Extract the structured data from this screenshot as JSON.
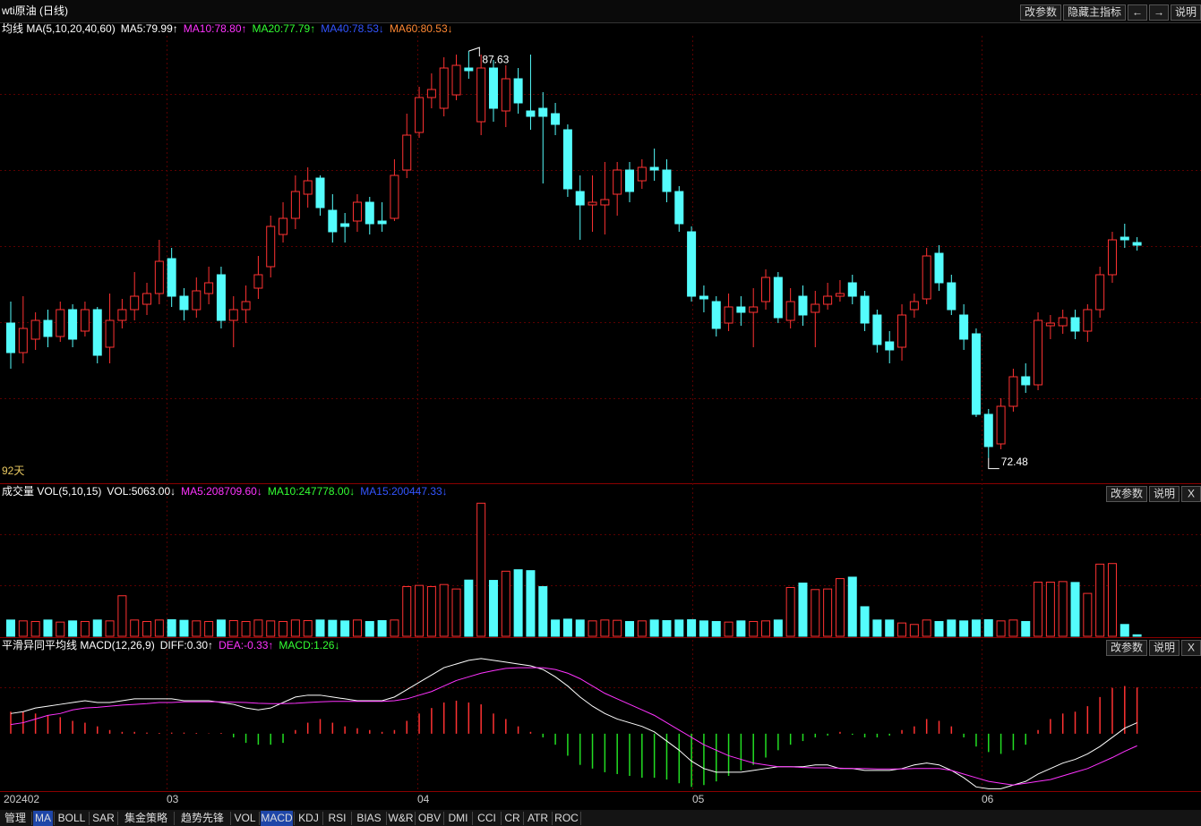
{
  "header": {
    "title": "wti原油 (日线)",
    "buttons": [
      "改参数",
      "隐藏主指标",
      "←",
      "→",
      "说明"
    ]
  },
  "chart_data": [
    {
      "type": "candlestick",
      "legend": [
        {
          "text": "均线 MA(5,10,20,40,60)",
          "color": "#ffffff"
        },
        {
          "text": "MA5:79.99↑",
          "color": "#ffffff"
        },
        {
          "text": "MA10:78.80↑",
          "color": "#ff33ff"
        },
        {
          "text": "MA20:77.79↑",
          "color": "#33ff33"
        },
        {
          "text": "MA40:78.53↓",
          "color": "#3355ff"
        },
        {
          "text": "MA60:80.53↓",
          "color": "#ff8833"
        }
      ],
      "period_label": "92天",
      "up_color": "#ff3232",
      "down_color": "#54fcfc",
      "ylim": [
        71.6,
        88.2
      ],
      "candles": [
        {
          "open": 77.5,
          "high": 78.3,
          "low": 75.8,
          "close": 76.4
        },
        {
          "open": 76.4,
          "high": 78.5,
          "low": 76.0,
          "close": 77.3
        },
        {
          "open": 76.9,
          "high": 77.9,
          "low": 76.5,
          "close": 77.6
        },
        {
          "open": 77.6,
          "high": 78.0,
          "low": 76.6,
          "close": 77.0
        },
        {
          "open": 77.0,
          "high": 78.3,
          "low": 76.8,
          "close": 78.0
        },
        {
          "open": 78.0,
          "high": 78.2,
          "low": 76.6,
          "close": 76.9
        },
        {
          "open": 77.2,
          "high": 78.3,
          "low": 77.0,
          "close": 78.0
        },
        {
          "open": 78.0,
          "high": 78.1,
          "low": 76.0,
          "close": 76.3
        },
        {
          "open": 76.6,
          "high": 78.6,
          "low": 76.0,
          "close": 77.6
        },
        {
          "open": 77.6,
          "high": 78.4,
          "low": 77.3,
          "close": 78.0
        },
        {
          "open": 78.0,
          "high": 79.4,
          "low": 77.6,
          "close": 78.5
        },
        {
          "open": 78.2,
          "high": 79.0,
          "low": 77.8,
          "close": 78.6
        },
        {
          "open": 78.6,
          "high": 80.6,
          "low": 78.2,
          "close": 79.8
        },
        {
          "open": 79.9,
          "high": 80.3,
          "low": 78.1,
          "close": 78.5
        },
        {
          "open": 78.5,
          "high": 78.8,
          "low": 77.6,
          "close": 78.0
        },
        {
          "open": 78.0,
          "high": 79.2,
          "low": 77.7,
          "close": 78.7
        },
        {
          "open": 78.6,
          "high": 79.6,
          "low": 78.2,
          "close": 79.0
        },
        {
          "open": 79.3,
          "high": 79.6,
          "low": 77.3,
          "close": 77.6
        },
        {
          "open": 77.6,
          "high": 78.5,
          "low": 76.6,
          "close": 78.0
        },
        {
          "open": 78.0,
          "high": 78.9,
          "low": 77.5,
          "close": 78.3
        },
        {
          "open": 78.8,
          "high": 80.0,
          "low": 78.4,
          "close": 79.3
        },
        {
          "open": 79.6,
          "high": 81.5,
          "low": 79.2,
          "close": 81.1
        },
        {
          "open": 80.8,
          "high": 82.0,
          "low": 80.5,
          "close": 81.4
        },
        {
          "open": 81.4,
          "high": 83.0,
          "low": 81.0,
          "close": 82.4
        },
        {
          "open": 82.3,
          "high": 83.3,
          "low": 81.8,
          "close": 82.8
        },
        {
          "open": 82.9,
          "high": 83.0,
          "low": 81.5,
          "close": 81.8
        },
        {
          "open": 81.7,
          "high": 82.3,
          "low": 80.5,
          "close": 80.9
        },
        {
          "open": 81.2,
          "high": 81.6,
          "low": 80.5,
          "close": 81.1
        },
        {
          "open": 81.3,
          "high": 82.3,
          "low": 80.9,
          "close": 82.0
        },
        {
          "open": 82.0,
          "high": 82.2,
          "low": 80.8,
          "close": 81.2
        },
        {
          "open": 81.3,
          "high": 82.0,
          "low": 80.9,
          "close": 81.2
        },
        {
          "open": 81.4,
          "high": 83.6,
          "low": 81.3,
          "close": 83.0
        },
        {
          "open": 83.2,
          "high": 85.3,
          "low": 82.9,
          "close": 84.5
        },
        {
          "open": 84.6,
          "high": 86.3,
          "low": 84.4,
          "close": 85.9
        },
        {
          "open": 85.9,
          "high": 86.8,
          "low": 85.5,
          "close": 86.2
        },
        {
          "open": 85.5,
          "high": 87.4,
          "low": 85.2,
          "close": 87.0
        },
        {
          "open": 86.0,
          "high": 87.5,
          "low": 85.8,
          "close": 87.1
        },
        {
          "open": 87.0,
          "high": 87.63,
          "low": 86.6,
          "close": 86.9
        },
        {
          "open": 85.0,
          "high": 87.5,
          "low": 84.5,
          "close": 87.0
        },
        {
          "open": 87.0,
          "high": 87.3,
          "low": 85.0,
          "close": 85.5
        },
        {
          "open": 85.4,
          "high": 87.1,
          "low": 84.8,
          "close": 86.6
        },
        {
          "open": 86.6,
          "high": 87.0,
          "low": 85.3,
          "close": 85.7
        },
        {
          "open": 85.4,
          "high": 87.5,
          "low": 84.7,
          "close": 85.2
        },
        {
          "open": 85.5,
          "high": 86.1,
          "low": 82.7,
          "close": 85.2
        },
        {
          "open": 85.3,
          "high": 85.7,
          "low": 84.5,
          "close": 84.9
        },
        {
          "open": 84.7,
          "high": 84.9,
          "low": 82.2,
          "close": 82.5
        },
        {
          "open": 82.4,
          "high": 83.0,
          "low": 80.6,
          "close": 81.9
        },
        {
          "open": 81.9,
          "high": 83.0,
          "low": 80.9,
          "close": 82.0
        },
        {
          "open": 81.9,
          "high": 83.5,
          "low": 80.8,
          "close": 82.1
        },
        {
          "open": 82.3,
          "high": 83.5,
          "low": 81.5,
          "close": 83.2
        },
        {
          "open": 83.2,
          "high": 83.5,
          "low": 82.0,
          "close": 82.4
        },
        {
          "open": 82.8,
          "high": 83.6,
          "low": 82.5,
          "close": 83.3
        },
        {
          "open": 83.3,
          "high": 84.0,
          "low": 82.8,
          "close": 83.2
        },
        {
          "open": 83.2,
          "high": 83.6,
          "low": 82.0,
          "close": 82.4
        },
        {
          "open": 82.4,
          "high": 82.6,
          "low": 80.9,
          "close": 81.2
        },
        {
          "open": 80.9,
          "high": 81.1,
          "low": 78.3,
          "close": 78.5
        },
        {
          "open": 78.5,
          "high": 78.9,
          "low": 77.9,
          "close": 78.4
        },
        {
          "open": 78.3,
          "high": 78.5,
          "low": 77.0,
          "close": 77.3
        },
        {
          "open": 77.5,
          "high": 78.6,
          "low": 77.2,
          "close": 78.1
        },
        {
          "open": 78.1,
          "high": 78.5,
          "low": 77.4,
          "close": 77.9
        },
        {
          "open": 77.9,
          "high": 78.8,
          "low": 76.6,
          "close": 78.1
        },
        {
          "open": 78.3,
          "high": 79.5,
          "low": 78.0,
          "close": 79.2
        },
        {
          "open": 79.2,
          "high": 79.4,
          "low": 77.5,
          "close": 77.7
        },
        {
          "open": 77.6,
          "high": 78.8,
          "low": 77.3,
          "close": 78.3
        },
        {
          "open": 78.5,
          "high": 78.9,
          "low": 77.4,
          "close": 77.8
        },
        {
          "open": 77.9,
          "high": 78.7,
          "low": 76.6,
          "close": 78.2
        },
        {
          "open": 78.2,
          "high": 79.0,
          "low": 78.0,
          "close": 78.5
        },
        {
          "open": 78.5,
          "high": 79.1,
          "low": 78.3,
          "close": 78.6
        },
        {
          "open": 79.0,
          "high": 79.3,
          "low": 78.2,
          "close": 78.5
        },
        {
          "open": 78.5,
          "high": 78.7,
          "low": 77.2,
          "close": 77.5
        },
        {
          "open": 77.8,
          "high": 78.0,
          "low": 76.4,
          "close": 76.7
        },
        {
          "open": 76.8,
          "high": 77.2,
          "low": 76.0,
          "close": 76.5
        },
        {
          "open": 76.6,
          "high": 78.2,
          "low": 76.1,
          "close": 77.8
        },
        {
          "open": 78.0,
          "high": 78.6,
          "low": 77.7,
          "close": 78.3
        },
        {
          "open": 78.4,
          "high": 80.3,
          "low": 78.2,
          "close": 80.0
        },
        {
          "open": 80.1,
          "high": 80.4,
          "low": 78.7,
          "close": 79.0
        },
        {
          "open": 79.0,
          "high": 79.3,
          "low": 77.8,
          "close": 78.0
        },
        {
          "open": 77.8,
          "high": 78.2,
          "low": 76.5,
          "close": 76.9
        },
        {
          "open": 77.1,
          "high": 77.3,
          "low": 74.0,
          "close": 74.1
        },
        {
          "open": 74.1,
          "high": 74.3,
          "low": 72.48,
          "close": 72.9
        },
        {
          "open": 73.0,
          "high": 74.7,
          "low": 72.8,
          "close": 74.4
        },
        {
          "open": 74.4,
          "high": 75.8,
          "low": 74.2,
          "close": 75.5
        },
        {
          "open": 75.5,
          "high": 76.0,
          "low": 74.9,
          "close": 75.2
        },
        {
          "open": 75.2,
          "high": 77.9,
          "low": 75.0,
          "close": 77.6
        },
        {
          "open": 77.4,
          "high": 77.8,
          "low": 76.9,
          "close": 77.5
        },
        {
          "open": 77.4,
          "high": 78.0,
          "low": 77.1,
          "close": 77.7
        },
        {
          "open": 77.7,
          "high": 78.0,
          "low": 76.9,
          "close": 77.2
        },
        {
          "open": 77.2,
          "high": 78.2,
          "low": 76.8,
          "close": 78.0
        },
        {
          "open": 78.0,
          "high": 79.6,
          "low": 77.7,
          "close": 79.3
        },
        {
          "open": 79.3,
          "high": 80.9,
          "low": 79.0,
          "close": 80.6
        },
        {
          "open": 80.7,
          "high": 81.2,
          "low": 80.3,
          "close": 80.6
        },
        {
          "open": 80.5,
          "high": 80.7,
          "low": 80.2,
          "close": 80.4
        }
      ]
    },
    {
      "type": "bar",
      "legend": [
        {
          "text": "成交量 VOL(5,10,15)",
          "color": "#ffffff"
        },
        {
          "text": "VOL:5063.00↓",
          "color": "#ffffff"
        },
        {
          "text": "MA5:208709.60↓",
          "color": "#ff33ff"
        },
        {
          "text": "MA10:247778.00↓",
          "color": "#33ff33"
        },
        {
          "text": "MA15:200447.33↓",
          "color": "#3355ff"
        }
      ],
      "buttons": [
        "改参数",
        "说明",
        "X"
      ],
      "ylim": [
        0,
        460000
      ],
      "values": [
        55000,
        52000,
        50000,
        55000,
        48000,
        52000,
        50000,
        55000,
        52000,
        137000,
        55000,
        50000,
        55000,
        56000,
        54000,
        52000,
        50000,
        55000,
        53000,
        50000,
        55000,
        52000,
        50000,
        55000,
        53000,
        55000,
        54000,
        52000,
        55000,
        50000,
        53000,
        55000,
        168000,
        172000,
        168000,
        175000,
        160000,
        190000,
        450000,
        189000,
        220000,
        225000,
        222000,
        168000,
        55000,
        58000,
        55000,
        52000,
        55000,
        54000,
        50000,
        52000,
        55000,
        53000,
        55000,
        56000,
        52000,
        50000,
        48000,
        52000,
        50000,
        52000,
        55000,
        165000,
        180000,
        158000,
        160000,
        195000,
        200000,
        100000,
        55000,
        55000,
        45000,
        40000,
        55000,
        50000,
        55000,
        52000,
        55000,
        56000,
        52000,
        55000,
        50000,
        183000,
        183000,
        185000,
        182000,
        145000,
        244000,
        246000,
        40000,
        5063
      ]
    },
    {
      "type": "macd",
      "legend": [
        {
          "text": "平滑异同平均线 MACD(12,26,9)",
          "color": "#ffffff"
        },
        {
          "text": "DIFF:0.30↑",
          "color": "#ffffff"
        },
        {
          "text": "DEA:-0.33↑",
          "color": "#ff33ff"
        },
        {
          "text": "MACD:1.26↓",
          "color": "#33ff33"
        }
      ],
      "buttons": [
        "改参数",
        "说明",
        "X"
      ],
      "ylim": [
        -1.54,
        2.07
      ],
      "lines": [
        {
          "color": "#ffffff",
          "values": [
            0.55,
            0.6,
            0.7,
            0.75,
            0.8,
            0.85,
            0.9,
            0.85,
            0.85,
            0.9,
            0.95,
            0.95,
            0.95,
            0.95,
            0.9,
            0.9,
            0.9,
            0.85,
            0.8,
            0.7,
            0.65,
            0.7,
            0.85,
            1.0,
            1.05,
            1.05,
            1.0,
            0.95,
            0.9,
            0.9,
            0.9,
            1.0,
            1.2,
            1.4,
            1.6,
            1.8,
            1.9,
            2.0,
            2.05,
            2.0,
            1.95,
            1.9,
            1.85,
            1.75,
            1.55,
            1.3,
            1.0,
            0.75,
            0.55,
            0.4,
            0.3,
            0.2,
            0.05,
            -0.2,
            -0.45,
            -0.75,
            -0.95,
            -1.05,
            -1.05,
            -1.05,
            -1.0,
            -0.95,
            -0.9,
            -0.9,
            -0.9,
            -0.85,
            -0.85,
            -0.95,
            -0.95,
            -1.0,
            -1.0,
            -1.0,
            -0.95,
            -0.85,
            -0.8,
            -0.85,
            -1.0,
            -1.2,
            -1.45,
            -1.5,
            -1.5,
            -1.4,
            -1.3,
            -1.1,
            -0.95,
            -0.8,
            -0.7,
            -0.55,
            -0.35,
            -0.1,
            0.15,
            0.3
          ]
        },
        {
          "color": "#ff33ff",
          "values": [
            0.25,
            0.3,
            0.4,
            0.5,
            0.55,
            0.65,
            0.7,
            0.72,
            0.75,
            0.78,
            0.8,
            0.82,
            0.85,
            0.85,
            0.87,
            0.87,
            0.87,
            0.87,
            0.86,
            0.85,
            0.83,
            0.82,
            0.82,
            0.83,
            0.85,
            0.87,
            0.88,
            0.88,
            0.88,
            0.88,
            0.88,
            0.9,
            0.95,
            1.05,
            1.15,
            1.3,
            1.45,
            1.55,
            1.65,
            1.72,
            1.78,
            1.8,
            1.8,
            1.8,
            1.75,
            1.65,
            1.5,
            1.3,
            1.1,
            0.95,
            0.8,
            0.65,
            0.5,
            0.3,
            0.1,
            -0.1,
            -0.3,
            -0.45,
            -0.6,
            -0.7,
            -0.8,
            -0.85,
            -0.9,
            -0.9,
            -0.92,
            -0.93,
            -0.93,
            -0.94,
            -0.95,
            -0.95,
            -0.96,
            -0.96,
            -0.96,
            -0.95,
            -0.95,
            -0.95,
            -1.0,
            -1.1,
            -1.2,
            -1.3,
            -1.35,
            -1.4,
            -1.35,
            -1.3,
            -1.25,
            -1.15,
            -1.05,
            -0.95,
            -0.8,
            -0.65,
            -0.48,
            -0.33
          ]
        }
      ],
      "up_color": "#ff3232",
      "down_color": "#22dd22",
      "histogram": [
        0.6,
        0.6,
        0.55,
        0.5,
        0.45,
        0.35,
        0.3,
        0.2,
        0.1,
        0.05,
        0.05,
        0.03,
        0.02,
        0.03,
        0.03,
        0.02,
        0.01,
        0.02,
        -0.1,
        -0.25,
        -0.3,
        -0.3,
        -0.25,
        0.1,
        0.3,
        0.4,
        0.3,
        0.2,
        0.15,
        0.1,
        0.05,
        0.1,
        0.35,
        0.55,
        0.7,
        0.85,
        0.9,
        0.85,
        0.8,
        0.55,
        0.4,
        0.2,
        0.05,
        -0.1,
        -0.3,
        -0.6,
        -0.85,
        -0.95,
        -1.05,
        -1.1,
        -1.15,
        -1.2,
        -1.2,
        -1.25,
        -1.35,
        -1.45,
        -1.4,
        -1.3,
        -1.15,
        -1.0,
        -0.85,
        -0.65,
        -0.45,
        -0.3,
        -0.2,
        -0.1,
        -0.05,
        0.05,
        -0.03,
        -0.1,
        -0.1,
        -0.05,
        0.1,
        0.2,
        0.4,
        0.35,
        0.2,
        -0.1,
        -0.35,
        -0.5,
        -0.55,
        -0.45,
        -0.3,
        0.1,
        0.4,
        0.55,
        0.6,
        0.75,
        1.0,
        1.25,
        1.3,
        1.26
      ]
    }
  ],
  "x_labels": [
    "202402",
    "03",
    "04",
    "05",
    "06"
  ],
  "tabs": [
    {
      "label": "管理"
    },
    {
      "label": "MA",
      "active": true
    },
    {
      "label": "BOLL"
    },
    {
      "label": "SAR"
    },
    {
      "label": "集金策略"
    },
    {
      "label": "趋势先锋"
    },
    {
      "label": "VOL"
    },
    {
      "label": "MACD",
      "active": true
    },
    {
      "label": "KDJ"
    },
    {
      "label": "RSI"
    },
    {
      "label": "BIAS"
    },
    {
      "label": "W&R"
    },
    {
      "label": "OBV"
    },
    {
      "label": "DMI"
    },
    {
      "label": "CCI"
    },
    {
      "label": "CR"
    },
    {
      "label": "ATR"
    },
    {
      "label": "ROC"
    }
  ]
}
